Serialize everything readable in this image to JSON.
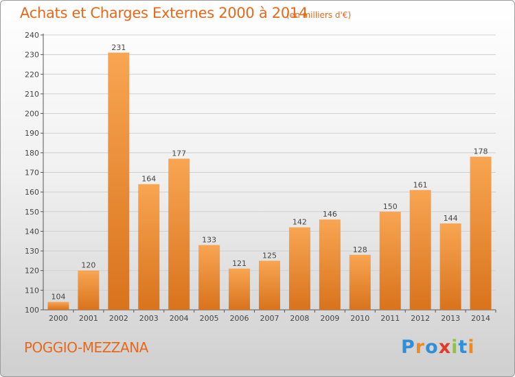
{
  "header": {
    "title": "Achats et Charges Externes 2000 à 2014",
    "unit": "(en milliers d'€)"
  },
  "footer": {
    "commune": "POGGIO-MEZZANA",
    "logo_text": "Proxiti"
  },
  "colors": {
    "accent": "#e8681a",
    "bar_light": "#f8a552",
    "bar_dark": "#d9731c",
    "grid": "#cfcfcf"
  },
  "chart_data": {
    "type": "bar",
    "title": "Achats et Charges Externes 2000 à 2014",
    "subtitle": "(en milliers d'€)",
    "categories": [
      "2000",
      "2001",
      "2002",
      "2003",
      "2004",
      "2005",
      "2006",
      "2007",
      "2008",
      "2009",
      "2010",
      "2011",
      "2012",
      "2013",
      "2014"
    ],
    "values": [
      104,
      120,
      231,
      164,
      177,
      133,
      121,
      125,
      142,
      146,
      128,
      150,
      161,
      144,
      178
    ],
    "ylim": [
      100,
      240
    ],
    "yticks": [
      100,
      110,
      120,
      130,
      140,
      150,
      160,
      170,
      180,
      190,
      200,
      210,
      220,
      230,
      240
    ],
    "grid": true,
    "data_labels": true
  }
}
